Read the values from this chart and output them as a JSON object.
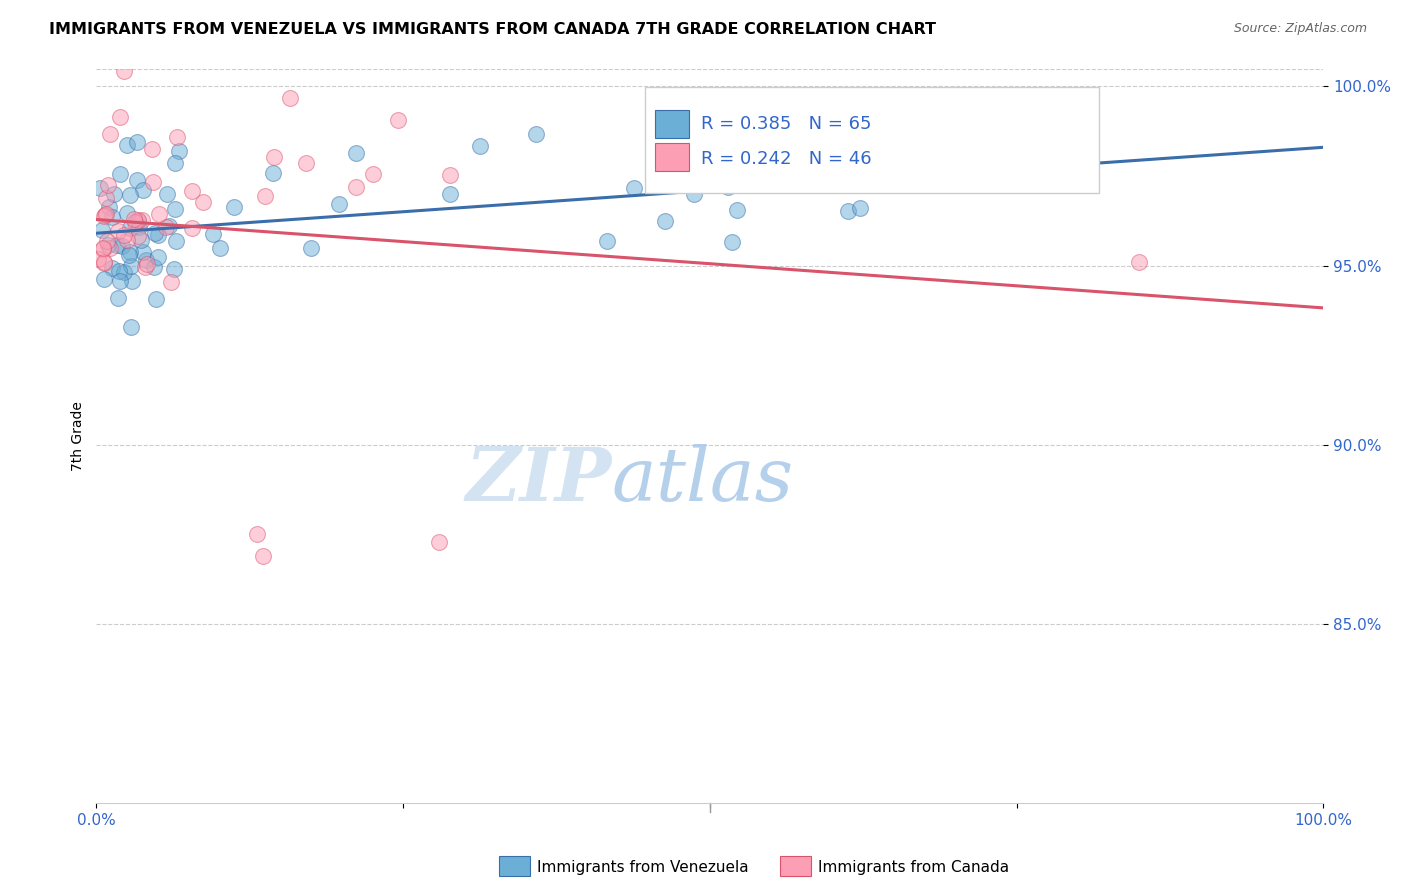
{
  "title": "IMMIGRANTS FROM VENEZUELA VS IMMIGRANTS FROM CANADA 7TH GRADE CORRELATION CHART",
  "source": "Source: ZipAtlas.com",
  "ylabel": "7th Grade",
  "xmin": 0.0,
  "xmax": 1.0,
  "ymin": 0.8,
  "ymax": 1.005,
  "yticks": [
    0.85,
    0.9,
    0.95,
    1.0
  ],
  "ytick_labels": [
    "85.0%",
    "90.0%",
    "95.0%",
    "100.0%"
  ],
  "xticks": [
    0.0,
    0.25,
    0.5,
    0.75,
    1.0
  ],
  "xtick_labels": [
    "0.0%",
    "",
    "",
    "",
    "100.0%"
  ],
  "R_venezuela": 0.385,
  "N_venezuela": 65,
  "R_canada": 0.242,
  "N_canada": 46,
  "color_venezuela": "#6baed6",
  "color_canada": "#fc9fb5",
  "line_color_venezuela": "#3a6eaa",
  "line_color_canada": "#d9536a",
  "legend_label_venezuela": "Immigrants from Venezuela",
  "legend_label_canada": "Immigrants from Canada",
  "watermark_zip": "ZIP",
  "watermark_atlas": "atlas",
  "watermark_color_zip": "#ccdff0",
  "watermark_color_atlas": "#b0cce8"
}
